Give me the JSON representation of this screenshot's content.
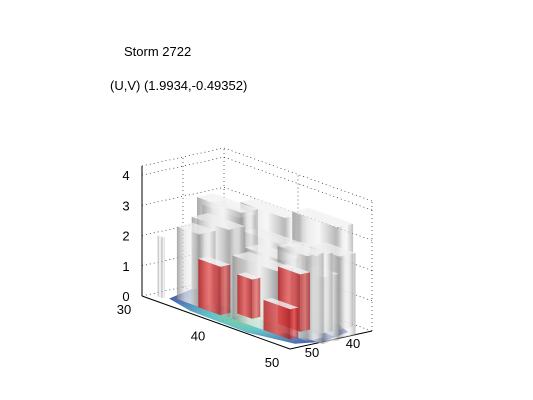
{
  "chart_data": {
    "type": "surface3d",
    "title": "Storm 2722",
    "subtitle": "(U,V) (1.9934,-0.49352)",
    "xlabel": "",
    "ylabel": "",
    "zlabel": "",
    "x_ticks": [
      "30",
      "40",
      "50"
    ],
    "y_ticks": [
      "40",
      "50"
    ],
    "z_ticks": [
      "0",
      "1",
      "2",
      "3",
      "4"
    ],
    "xlim": [
      30,
      50
    ],
    "ylim": [
      30,
      50
    ],
    "zlim": [
      0,
      4.3
    ],
    "grid": true,
    "colors": {
      "isosurface": "#c8c8c8",
      "core": "#d8282a",
      "floor_low": "#2a3a9c",
      "floor_mid": "#48b8c0",
      "floor_high": "#88d070"
    }
  }
}
